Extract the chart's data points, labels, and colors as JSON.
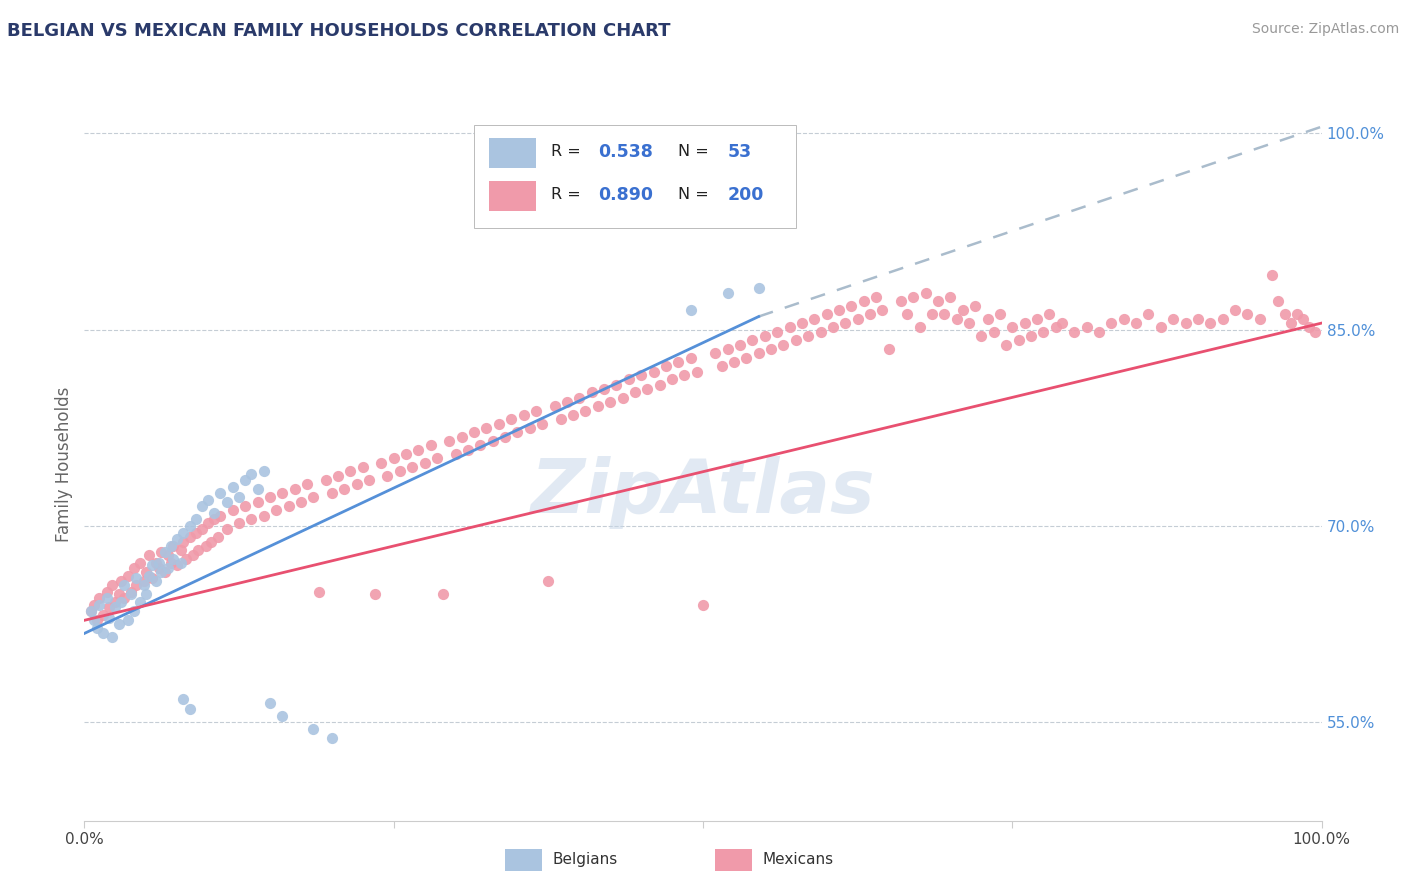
{
  "title": "BELGIAN VS MEXICAN FAMILY HOUSEHOLDS CORRELATION CHART",
  "source": "Source: ZipAtlas.com",
  "ylabel": "Family Households",
  "xlim": [
    0.0,
    1.0
  ],
  "ylim": [
    0.475,
    1.02
  ],
  "y_tick_right": [
    0.55,
    0.7,
    0.85,
    1.0
  ],
  "y_tick_right_labels": [
    "55.0%",
    "70.0%",
    "85.0%",
    "100.0%"
  ],
  "belgian_color": "#aac4e0",
  "mexican_color": "#f09aaa",
  "belgian_line_color": "#5590d8",
  "mexican_line_color": "#e85070",
  "dashed_line_color": "#aabccc",
  "legend_color": "#3a70d0",
  "watermark": "ZipAtlas",
  "belgian_scatter": [
    [
      0.005,
      0.635
    ],
    [
      0.008,
      0.628
    ],
    [
      0.01,
      0.622
    ],
    [
      0.012,
      0.64
    ],
    [
      0.015,
      0.618
    ],
    [
      0.018,
      0.645
    ],
    [
      0.02,
      0.63
    ],
    [
      0.022,
      0.615
    ],
    [
      0.025,
      0.638
    ],
    [
      0.028,
      0.625
    ],
    [
      0.03,
      0.642
    ],
    [
      0.032,
      0.655
    ],
    [
      0.035,
      0.628
    ],
    [
      0.038,
      0.648
    ],
    [
      0.04,
      0.635
    ],
    [
      0.042,
      0.66
    ],
    [
      0.045,
      0.642
    ],
    [
      0.048,
      0.655
    ],
    [
      0.05,
      0.648
    ],
    [
      0.052,
      0.662
    ],
    [
      0.055,
      0.67
    ],
    [
      0.058,
      0.658
    ],
    [
      0.06,
      0.672
    ],
    [
      0.062,
      0.665
    ],
    [
      0.065,
      0.68
    ],
    [
      0.068,
      0.668
    ],
    [
      0.07,
      0.685
    ],
    [
      0.072,
      0.675
    ],
    [
      0.075,
      0.69
    ],
    [
      0.078,
      0.672
    ],
    [
      0.08,
      0.695
    ],
    [
      0.085,
      0.7
    ],
    [
      0.09,
      0.705
    ],
    [
      0.095,
      0.715
    ],
    [
      0.1,
      0.72
    ],
    [
      0.105,
      0.71
    ],
    [
      0.11,
      0.725
    ],
    [
      0.115,
      0.718
    ],
    [
      0.12,
      0.73
    ],
    [
      0.125,
      0.722
    ],
    [
      0.13,
      0.735
    ],
    [
      0.135,
      0.74
    ],
    [
      0.14,
      0.728
    ],
    [
      0.145,
      0.742
    ],
    [
      0.08,
      0.568
    ],
    [
      0.085,
      0.56
    ],
    [
      0.15,
      0.565
    ],
    [
      0.16,
      0.555
    ],
    [
      0.185,
      0.545
    ],
    [
      0.2,
      0.538
    ],
    [
      0.52,
      0.878
    ],
    [
      0.49,
      0.865
    ],
    [
      0.545,
      0.882
    ]
  ],
  "mexican_scatter": [
    [
      0.005,
      0.635
    ],
    [
      0.008,
      0.64
    ],
    [
      0.01,
      0.628
    ],
    [
      0.012,
      0.645
    ],
    [
      0.015,
      0.632
    ],
    [
      0.018,
      0.65
    ],
    [
      0.02,
      0.638
    ],
    [
      0.022,
      0.655
    ],
    [
      0.025,
      0.642
    ],
    [
      0.028,
      0.648
    ],
    [
      0.03,
      0.658
    ],
    [
      0.032,
      0.645
    ],
    [
      0.035,
      0.662
    ],
    [
      0.038,
      0.65
    ],
    [
      0.04,
      0.668
    ],
    [
      0.042,
      0.655
    ],
    [
      0.045,
      0.672
    ],
    [
      0.048,
      0.658
    ],
    [
      0.05,
      0.665
    ],
    [
      0.052,
      0.678
    ],
    [
      0.055,
      0.66
    ],
    [
      0.058,
      0.672
    ],
    [
      0.06,
      0.668
    ],
    [
      0.062,
      0.68
    ],
    [
      0.065,
      0.665
    ],
    [
      0.068,
      0.678
    ],
    [
      0.07,
      0.672
    ],
    [
      0.072,
      0.685
    ],
    [
      0.075,
      0.67
    ],
    [
      0.078,
      0.682
    ],
    [
      0.08,
      0.688
    ],
    [
      0.082,
      0.675
    ],
    [
      0.085,
      0.692
    ],
    [
      0.088,
      0.678
    ],
    [
      0.09,
      0.695
    ],
    [
      0.092,
      0.682
    ],
    [
      0.095,
      0.698
    ],
    [
      0.098,
      0.685
    ],
    [
      0.1,
      0.702
    ],
    [
      0.102,
      0.688
    ],
    [
      0.105,
      0.705
    ],
    [
      0.108,
      0.692
    ],
    [
      0.11,
      0.708
    ],
    [
      0.115,
      0.698
    ],
    [
      0.12,
      0.712
    ],
    [
      0.125,
      0.702
    ],
    [
      0.13,
      0.715
    ],
    [
      0.135,
      0.705
    ],
    [
      0.14,
      0.718
    ],
    [
      0.145,
      0.708
    ],
    [
      0.15,
      0.722
    ],
    [
      0.155,
      0.712
    ],
    [
      0.16,
      0.725
    ],
    [
      0.165,
      0.715
    ],
    [
      0.17,
      0.728
    ],
    [
      0.175,
      0.718
    ],
    [
      0.18,
      0.732
    ],
    [
      0.185,
      0.722
    ],
    [
      0.19,
      0.65
    ],
    [
      0.195,
      0.735
    ],
    [
      0.2,
      0.725
    ],
    [
      0.205,
      0.738
    ],
    [
      0.21,
      0.728
    ],
    [
      0.215,
      0.742
    ],
    [
      0.22,
      0.732
    ],
    [
      0.225,
      0.745
    ],
    [
      0.23,
      0.735
    ],
    [
      0.235,
      0.648
    ],
    [
      0.24,
      0.748
    ],
    [
      0.245,
      0.738
    ],
    [
      0.25,
      0.752
    ],
    [
      0.255,
      0.742
    ],
    [
      0.26,
      0.755
    ],
    [
      0.265,
      0.745
    ],
    [
      0.27,
      0.758
    ],
    [
      0.275,
      0.748
    ],
    [
      0.28,
      0.762
    ],
    [
      0.285,
      0.752
    ],
    [
      0.29,
      0.648
    ],
    [
      0.295,
      0.765
    ],
    [
      0.3,
      0.755
    ],
    [
      0.305,
      0.768
    ],
    [
      0.31,
      0.758
    ],
    [
      0.315,
      0.772
    ],
    [
      0.32,
      0.762
    ],
    [
      0.325,
      0.775
    ],
    [
      0.33,
      0.765
    ],
    [
      0.335,
      0.778
    ],
    [
      0.34,
      0.768
    ],
    [
      0.345,
      0.782
    ],
    [
      0.35,
      0.772
    ],
    [
      0.355,
      0.785
    ],
    [
      0.36,
      0.775
    ],
    [
      0.365,
      0.788
    ],
    [
      0.37,
      0.778
    ],
    [
      0.375,
      0.658
    ],
    [
      0.38,
      0.792
    ],
    [
      0.385,
      0.782
    ],
    [
      0.39,
      0.795
    ],
    [
      0.395,
      0.785
    ],
    [
      0.4,
      0.798
    ],
    [
      0.405,
      0.788
    ],
    [
      0.41,
      0.802
    ],
    [
      0.415,
      0.792
    ],
    [
      0.42,
      0.805
    ],
    [
      0.425,
      0.795
    ],
    [
      0.43,
      0.808
    ],
    [
      0.435,
      0.798
    ],
    [
      0.44,
      0.812
    ],
    [
      0.445,
      0.802
    ],
    [
      0.45,
      0.815
    ],
    [
      0.455,
      0.805
    ],
    [
      0.46,
      0.818
    ],
    [
      0.465,
      0.808
    ],
    [
      0.47,
      0.822
    ],
    [
      0.475,
      0.812
    ],
    [
      0.48,
      0.825
    ],
    [
      0.485,
      0.815
    ],
    [
      0.49,
      0.828
    ],
    [
      0.495,
      0.818
    ],
    [
      0.5,
      0.64
    ],
    [
      0.51,
      0.832
    ],
    [
      0.515,
      0.822
    ],
    [
      0.52,
      0.835
    ],
    [
      0.525,
      0.825
    ],
    [
      0.53,
      0.838
    ],
    [
      0.535,
      0.828
    ],
    [
      0.54,
      0.842
    ],
    [
      0.545,
      0.832
    ],
    [
      0.55,
      0.845
    ],
    [
      0.555,
      0.835
    ],
    [
      0.56,
      0.848
    ],
    [
      0.565,
      0.838
    ],
    [
      0.57,
      0.852
    ],
    [
      0.575,
      0.842
    ],
    [
      0.58,
      0.855
    ],
    [
      0.585,
      0.845
    ],
    [
      0.59,
      0.858
    ],
    [
      0.595,
      0.848
    ],
    [
      0.6,
      0.862
    ],
    [
      0.605,
      0.852
    ],
    [
      0.61,
      0.865
    ],
    [
      0.615,
      0.855
    ],
    [
      0.62,
      0.868
    ],
    [
      0.625,
      0.858
    ],
    [
      0.63,
      0.872
    ],
    [
      0.635,
      0.862
    ],
    [
      0.64,
      0.875
    ],
    [
      0.645,
      0.865
    ],
    [
      0.65,
      0.835
    ],
    [
      0.66,
      0.872
    ],
    [
      0.665,
      0.862
    ],
    [
      0.67,
      0.875
    ],
    [
      0.675,
      0.852
    ],
    [
      0.68,
      0.878
    ],
    [
      0.685,
      0.862
    ],
    [
      0.69,
      0.872
    ],
    [
      0.695,
      0.862
    ],
    [
      0.7,
      0.875
    ],
    [
      0.705,
      0.858
    ],
    [
      0.71,
      0.865
    ],
    [
      0.715,
      0.855
    ],
    [
      0.72,
      0.868
    ],
    [
      0.725,
      0.845
    ],
    [
      0.73,
      0.858
    ],
    [
      0.735,
      0.848
    ],
    [
      0.74,
      0.862
    ],
    [
      0.745,
      0.838
    ],
    [
      0.75,
      0.852
    ],
    [
      0.755,
      0.842
    ],
    [
      0.76,
      0.855
    ],
    [
      0.765,
      0.845
    ],
    [
      0.77,
      0.858
    ],
    [
      0.775,
      0.848
    ],
    [
      0.78,
      0.862
    ],
    [
      0.785,
      0.852
    ],
    [
      0.79,
      0.855
    ],
    [
      0.8,
      0.848
    ],
    [
      0.81,
      0.852
    ],
    [
      0.82,
      0.848
    ],
    [
      0.83,
      0.855
    ],
    [
      0.84,
      0.858
    ],
    [
      0.85,
      0.855
    ],
    [
      0.86,
      0.862
    ],
    [
      0.87,
      0.852
    ],
    [
      0.88,
      0.858
    ],
    [
      0.89,
      0.855
    ],
    [
      0.9,
      0.858
    ],
    [
      0.91,
      0.855
    ],
    [
      0.92,
      0.858
    ],
    [
      0.93,
      0.865
    ],
    [
      0.94,
      0.862
    ],
    [
      0.95,
      0.858
    ],
    [
      0.96,
      0.892
    ],
    [
      0.965,
      0.872
    ],
    [
      0.97,
      0.862
    ],
    [
      0.975,
      0.855
    ],
    [
      0.98,
      0.862
    ],
    [
      0.985,
      0.858
    ],
    [
      0.99,
      0.852
    ],
    [
      0.995,
      0.848
    ]
  ],
  "belgian_line_x": [
    0.0,
    0.545
  ],
  "belgian_line_y": [
    0.618,
    0.86
  ],
  "dashed_line_x": [
    0.545,
    1.0
  ],
  "dashed_line_y": [
    0.86,
    1.005
  ],
  "mexican_line_x": [
    0.0,
    1.0
  ],
  "mexican_line_y": [
    0.628,
    0.855
  ]
}
